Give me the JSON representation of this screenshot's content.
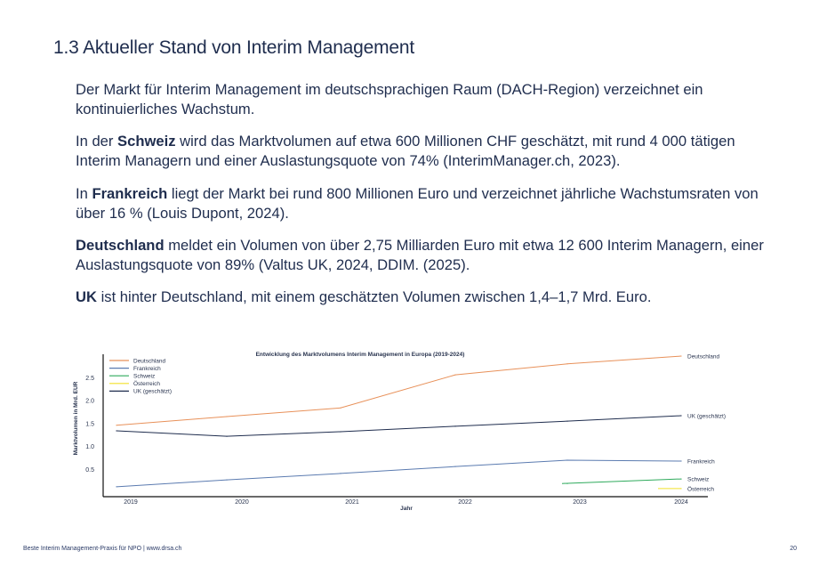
{
  "heading": "1.3 Aktueller Stand von Interim Management",
  "paragraphs": [
    {
      "bold": "",
      "text": "Der Markt für Interim Management im deutschsprachigen Raum (DACH-Region) verzeichnet ein kontinuierliches Wachstum."
    },
    {
      "pre": "In der ",
      "bold": "Schweiz",
      "text": " wird das Marktvolumen auf etwa 600 Millionen CHF geschätzt, mit rund 4 000 tätigen Interim Managern und einer Auslastungsquote von 74% (InterimManager.ch, 2023)."
    },
    {
      "pre": "In ",
      "bold": "Frankreich",
      "text": " liegt der Markt bei rund 800 Millionen Euro und verzeichnet jährliche Wachstumsraten von über 16 % (Louis Dupont, 2024)."
    },
    {
      "pre": "",
      "bold": "Deutschland",
      "text": " meldet ein Volumen von über 2,75 Milliarden Euro mit etwa 12 600 Interim Managern, einer Auslastungsquote von 89% (Valtus UK, 2024, DDIM. (2025)."
    },
    {
      "pre": "",
      "bold": "UK",
      "text": " ist hinter Deutschland, mit einem geschätzten Volumen zwischen 1,4–1,7 Mrd. Euro."
    }
  ],
  "footer": {
    "left": "Beste Interim Management-Praxis für NPO | www.drsa.ch",
    "page": "20"
  },
  "chart_data": {
    "type": "line",
    "title": "Entwicklung des Marktvolumens Interim Management in Europa (2019-2024)",
    "xlabel": "Jahr",
    "ylabel": "Marktvolumen in Mrd. EUR",
    "categories": [
      "2019",
      "2020",
      "2021",
      "2022",
      "2023",
      "2024"
    ],
    "yticks": [
      "0.5",
      "1.0",
      "1.5",
      "2.0",
      "2.5"
    ],
    "ylim": [
      0,
      3.0
    ],
    "grid": false,
    "legend": "top-left",
    "series": [
      {
        "name": "Deutschland",
        "color": "#e8915a",
        "values": [
          1.46,
          1.65,
          1.84,
          2.56,
          2.8,
          2.97
        ]
      },
      {
        "name": "Frankreich",
        "color": "#5b7bb0",
        "values": [
          0.12,
          0.27,
          0.41,
          0.56,
          0.7,
          0.68
        ]
      },
      {
        "name": "Schweiz",
        "color": "#2eaa5c",
        "values": [
          null,
          null,
          null,
          null,
          0.19,
          0.29
        ]
      },
      {
        "name": "Österreich",
        "color": "#f2e12a",
        "values": [
          null,
          null,
          null,
          null,
          null,
          0.08
        ]
      },
      {
        "name": "UK (geschätzt)",
        "color": "#1f2d4e",
        "values": [
          1.34,
          1.22,
          1.32,
          1.44,
          1.55,
          1.67
        ]
      }
    ]
  }
}
